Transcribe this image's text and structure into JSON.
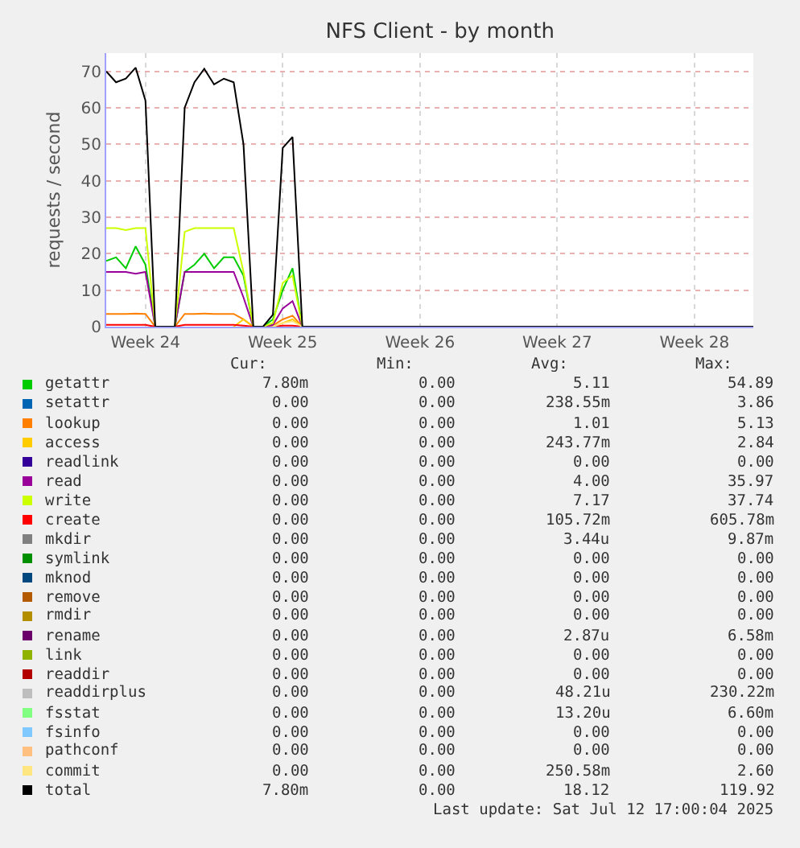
{
  "chart_data": {
    "type": "line",
    "title": "NFS Client - by month",
    "ylabel": "requests / second",
    "categories": [
      null,
      null,
      null,
      null,
      "Week 24",
      null,
      null,
      null,
      null,
      null,
      null,
      null,
      null,
      null,
      null,
      null,
      null,
      null,
      "Week 25",
      null,
      null,
      null,
      null,
      null,
      null,
      null,
      null,
      null,
      null,
      null,
      null,
      null,
      "Week 26",
      null,
      null,
      null,
      null,
      null,
      null,
      null,
      null,
      null,
      null,
      null,
      null,
      null,
      "Week 27",
      null,
      null,
      null,
      null,
      null,
      null,
      null,
      null,
      null,
      null,
      null,
      null,
      null,
      "Week 28",
      null,
      null,
      null,
      null,
      null,
      null
    ],
    "ylim": [
      0,
      75
    ],
    "yticks": [
      0,
      10,
      20,
      30,
      40,
      50,
      60,
      70
    ],
    "grid": true,
    "legend": "bottom",
    "marker": "none",
    "line_style": "solid",
    "series": [
      {
        "name": "getattr",
        "color": "#00cc00",
        "values": [
          18,
          19,
          16,
          22,
          17,
          0,
          null,
          0,
          15,
          17,
          20,
          16,
          19,
          19,
          14,
          0,
          0,
          2,
          10,
          16,
          0,
          null,
          null,
          null,
          null,
          null,
          null,
          null,
          null,
          null,
          null,
          null,
          null,
          null,
          null,
          null,
          null,
          null,
          null,
          null,
          null,
          null,
          null,
          null,
          null,
          null,
          null,
          null,
          null,
          null,
          null,
          null,
          null,
          null,
          null,
          null,
          null,
          null,
          null,
          null,
          null,
          null,
          null,
          null,
          null,
          null,
          null
        ]
      },
      {
        "name": "setattr",
        "color": "#0066b3",
        "values": [
          null,
          null,
          null,
          null,
          null,
          null,
          null,
          null,
          null,
          null,
          null,
          null,
          null,
          null,
          null,
          null,
          null,
          null,
          null,
          null,
          null,
          null,
          null,
          null,
          null,
          null,
          null,
          null,
          null,
          null,
          null,
          null,
          null,
          null,
          null,
          null,
          null,
          null,
          null,
          null,
          null,
          null,
          null,
          null,
          null,
          null,
          null,
          null,
          null,
          null,
          null,
          null,
          null,
          null,
          null,
          null,
          null,
          null,
          null,
          null,
          null,
          null,
          null,
          null,
          null,
          null,
          null
        ]
      },
      {
        "name": "lookup",
        "color": "#ff8000",
        "values": [
          3.5,
          3.5,
          3.5,
          3.6,
          3.5,
          0,
          null,
          0,
          3.5,
          3.5,
          3.6,
          3.5,
          3.5,
          3.5,
          2,
          0,
          0,
          0.3,
          2,
          3,
          0,
          null,
          null,
          null,
          null,
          null,
          null,
          null,
          null,
          null,
          null,
          null,
          null,
          null,
          null,
          null,
          null,
          null,
          null,
          null,
          null,
          null,
          null,
          null,
          null,
          null,
          null,
          null,
          null,
          null,
          null,
          null,
          null,
          null,
          null,
          null,
          null,
          null,
          null,
          null,
          null,
          null,
          null,
          null,
          null,
          null,
          null
        ]
      },
      {
        "name": "access",
        "color": "#ffcc00",
        "values": [
          null,
          null,
          null,
          null,
          null,
          null,
          null,
          null,
          null,
          null,
          null,
          null,
          null,
          0,
          2,
          0,
          null,
          0,
          1,
          2,
          0,
          null,
          null,
          null,
          null,
          null,
          null,
          null,
          null,
          null,
          null,
          null,
          null,
          null,
          null,
          null,
          null,
          null,
          null,
          null,
          null,
          null,
          null,
          null,
          null,
          null,
          null,
          null,
          null,
          null,
          null,
          null,
          null,
          null,
          null,
          null,
          null,
          null,
          null,
          null,
          null,
          null,
          null,
          null,
          null,
          null,
          null
        ]
      },
      {
        "name": "readlink",
        "color": "#330099",
        "values": [
          null,
          null,
          null,
          null,
          null,
          null,
          null,
          null,
          null,
          null,
          null,
          null,
          null,
          null,
          null,
          null,
          null,
          null,
          null,
          null,
          null,
          null,
          null,
          null,
          null,
          null,
          null,
          null,
          null,
          null,
          null,
          null,
          null,
          null,
          null,
          null,
          null,
          null,
          null,
          null,
          null,
          null,
          null,
          null,
          null,
          null,
          null,
          null,
          null,
          null,
          null,
          null,
          null,
          null,
          null,
          null,
          null,
          null,
          null,
          null,
          null,
          null,
          null,
          null,
          null,
          null,
          null
        ]
      },
      {
        "name": "read",
        "color": "#990099",
        "values": [
          15,
          15,
          15,
          14.5,
          15,
          0,
          null,
          0,
          15,
          15,
          15,
          15,
          15,
          15,
          8,
          0,
          0,
          0.5,
          5,
          7,
          0,
          null,
          null,
          null,
          null,
          null,
          null,
          null,
          null,
          null,
          null,
          null,
          null,
          null,
          null,
          null,
          null,
          null,
          null,
          null,
          null,
          null,
          null,
          null,
          null,
          null,
          null,
          null,
          null,
          null,
          null,
          null,
          null,
          null,
          null,
          null,
          null,
          null,
          null,
          null,
          null,
          null,
          null,
          null,
          null,
          null,
          null
        ]
      },
      {
        "name": "write",
        "color": "#ccff00",
        "values": [
          27,
          27,
          26.5,
          27,
          27,
          0,
          null,
          0,
          26,
          27,
          27,
          27,
          27,
          27,
          15,
          0,
          0,
          1,
          12,
          14,
          0,
          null,
          null,
          null,
          null,
          null,
          null,
          null,
          null,
          null,
          null,
          null,
          null,
          null,
          null,
          null,
          null,
          null,
          null,
          null,
          null,
          null,
          null,
          null,
          null,
          null,
          null,
          null,
          null,
          null,
          null,
          null,
          null,
          null,
          null,
          null,
          null,
          null,
          null,
          null,
          null,
          null,
          null,
          null,
          null,
          null,
          null
        ]
      },
      {
        "name": "create",
        "color": "#ff0000",
        "values": [
          0.5,
          0.5,
          0.5,
          0.5,
          0.5,
          0,
          null,
          0,
          0.5,
          0.5,
          0.5,
          0.5,
          0.5,
          0.5,
          0.3,
          0,
          null,
          0,
          0.3,
          0.3,
          0,
          null,
          null,
          null,
          null,
          null,
          null,
          null,
          null,
          null,
          null,
          null,
          null,
          null,
          null,
          null,
          null,
          null,
          null,
          null,
          null,
          null,
          null,
          null,
          null,
          null,
          null,
          null,
          null,
          null,
          null,
          null,
          null,
          null,
          null,
          null,
          null,
          null,
          null,
          null,
          null,
          null,
          null,
          null,
          null,
          null,
          null
        ]
      },
      {
        "name": "mkdir",
        "color": "#808080",
        "values": [
          null,
          null,
          null,
          null,
          null,
          null,
          null,
          null,
          null,
          null,
          null,
          null,
          null,
          null,
          null,
          null,
          null,
          null,
          null,
          null,
          null,
          null,
          null,
          null,
          null,
          null,
          null,
          null,
          null,
          null,
          null,
          null,
          null,
          null,
          null,
          null,
          null,
          null,
          null,
          null,
          null,
          null,
          null,
          null,
          null,
          null,
          null,
          null,
          null,
          null,
          null,
          null,
          null,
          null,
          null,
          null,
          null,
          null,
          null,
          null,
          null,
          null,
          null,
          null,
          null,
          null,
          null
        ]
      },
      {
        "name": "symlink",
        "color": "#008f00",
        "values": [
          null,
          null,
          null,
          null,
          null,
          null,
          null,
          null,
          null,
          null,
          null,
          null,
          null,
          null,
          null,
          null,
          null,
          null,
          null,
          null,
          null,
          null,
          null,
          null,
          null,
          null,
          null,
          null,
          null,
          null,
          null,
          null,
          null,
          null,
          null,
          null,
          null,
          null,
          null,
          null,
          null,
          null,
          null,
          null,
          null,
          null,
          null,
          null,
          null,
          null,
          null,
          null,
          null,
          null,
          null,
          null,
          null,
          null,
          null,
          null,
          null,
          null,
          null,
          null,
          null,
          null,
          null
        ]
      },
      {
        "name": "mknod",
        "color": "#00487d",
        "values": [
          null,
          null,
          null,
          null,
          null,
          null,
          null,
          null,
          null,
          null,
          null,
          null,
          null,
          null,
          null,
          null,
          null,
          null,
          null,
          null,
          null,
          null,
          null,
          null,
          null,
          null,
          null,
          null,
          null,
          null,
          null,
          null,
          null,
          null,
          null,
          null,
          null,
          null,
          null,
          null,
          null,
          null,
          null,
          null,
          null,
          null,
          null,
          null,
          null,
          null,
          null,
          null,
          null,
          null,
          null,
          null,
          null,
          null,
          null,
          null,
          null,
          null,
          null,
          null,
          null,
          null,
          null
        ]
      },
      {
        "name": "remove",
        "color": "#b35a00",
        "values": [
          null,
          null,
          null,
          null,
          null,
          null,
          null,
          null,
          null,
          null,
          null,
          null,
          null,
          null,
          null,
          null,
          null,
          null,
          null,
          null,
          null,
          null,
          null,
          null,
          null,
          null,
          null,
          null,
          null,
          null,
          null,
          null,
          null,
          null,
          null,
          null,
          null,
          null,
          null,
          null,
          null,
          null,
          null,
          null,
          null,
          null,
          null,
          null,
          null,
          null,
          null,
          null,
          null,
          null,
          null,
          null,
          null,
          null,
          null,
          null,
          null,
          null,
          null,
          null,
          null,
          null,
          null
        ]
      },
      {
        "name": "rmdir",
        "color": "#b38f00",
        "values": [
          null,
          null,
          null,
          null,
          null,
          null,
          null,
          null,
          null,
          null,
          null,
          null,
          null,
          null,
          null,
          null,
          null,
          null,
          null,
          null,
          null,
          null,
          null,
          null,
          null,
          null,
          null,
          null,
          null,
          null,
          null,
          null,
          null,
          null,
          null,
          null,
          null,
          null,
          null,
          null,
          null,
          null,
          null,
          null,
          null,
          null,
          null,
          null,
          null,
          null,
          null,
          null,
          null,
          null,
          null,
          null,
          null,
          null,
          null,
          null,
          null,
          null,
          null,
          null,
          null,
          null,
          null
        ]
      },
      {
        "name": "rename",
        "color": "#6b006b",
        "values": [
          null,
          null,
          null,
          null,
          null,
          null,
          null,
          null,
          null,
          null,
          null,
          null,
          null,
          null,
          null,
          null,
          null,
          null,
          null,
          null,
          null,
          null,
          null,
          null,
          null,
          null,
          null,
          null,
          null,
          null,
          null,
          null,
          null,
          null,
          null,
          null,
          null,
          null,
          null,
          null,
          null,
          null,
          null,
          null,
          null,
          null,
          null,
          null,
          null,
          null,
          null,
          null,
          null,
          null,
          null,
          null,
          null,
          null,
          null,
          null,
          null,
          null,
          null,
          null,
          null,
          null,
          null
        ]
      },
      {
        "name": "link",
        "color": "#8fb300",
        "values": [
          null,
          null,
          null,
          null,
          null,
          null,
          null,
          null,
          null,
          null,
          null,
          null,
          null,
          null,
          null,
          null,
          null,
          null,
          null,
          null,
          null,
          null,
          null,
          null,
          null,
          null,
          null,
          null,
          null,
          null,
          null,
          null,
          null,
          null,
          null,
          null,
          null,
          null,
          null,
          null,
          null,
          null,
          null,
          null,
          null,
          null,
          null,
          null,
          null,
          null,
          null,
          null,
          null,
          null,
          null,
          null,
          null,
          null,
          null,
          null,
          null,
          null,
          null,
          null,
          null,
          null,
          null
        ]
      },
      {
        "name": "readdir",
        "color": "#b30000",
        "values": [
          null,
          null,
          null,
          null,
          null,
          null,
          null,
          null,
          null,
          null,
          null,
          null,
          null,
          null,
          null,
          null,
          null,
          null,
          null,
          null,
          null,
          null,
          null,
          null,
          null,
          null,
          null,
          null,
          null,
          null,
          null,
          null,
          null,
          null,
          null,
          null,
          null,
          null,
          null,
          null,
          null,
          null,
          null,
          null,
          null,
          null,
          null,
          null,
          null,
          null,
          null,
          null,
          null,
          null,
          null,
          null,
          null,
          null,
          null,
          null,
          null,
          null,
          null,
          null,
          null,
          null,
          null
        ]
      },
      {
        "name": "readdirplus",
        "color": "#bebebe",
        "values": [
          null,
          null,
          null,
          null,
          null,
          null,
          null,
          null,
          null,
          null,
          null,
          null,
          null,
          null,
          null,
          null,
          null,
          null,
          null,
          null,
          null,
          null,
          null,
          null,
          null,
          null,
          null,
          null,
          null,
          null,
          null,
          null,
          null,
          null,
          null,
          null,
          null,
          null,
          null,
          null,
          null,
          null,
          null,
          null,
          null,
          null,
          null,
          null,
          null,
          null,
          null,
          null,
          null,
          null,
          null,
          null,
          null,
          null,
          null,
          null,
          null,
          null,
          null,
          null,
          null,
          null,
          null
        ]
      },
      {
        "name": "fsstat",
        "color": "#80ff80",
        "values": [
          null,
          null,
          null,
          null,
          null,
          null,
          null,
          null,
          null,
          null,
          null,
          null,
          null,
          null,
          null,
          null,
          null,
          null,
          null,
          null,
          null,
          null,
          null,
          null,
          null,
          null,
          null,
          null,
          null,
          null,
          null,
          null,
          null,
          null,
          null,
          null,
          null,
          null,
          null,
          null,
          null,
          null,
          null,
          null,
          null,
          null,
          null,
          null,
          null,
          null,
          null,
          null,
          null,
          null,
          null,
          null,
          null,
          null,
          null,
          null,
          null,
          null,
          null,
          null,
          null,
          null,
          null
        ]
      },
      {
        "name": "fsinfo",
        "color": "#80c9ff",
        "values": [
          null,
          null,
          null,
          null,
          null,
          null,
          null,
          null,
          null,
          null,
          null,
          null,
          null,
          null,
          null,
          null,
          null,
          null,
          null,
          null,
          null,
          null,
          null,
          null,
          null,
          null,
          null,
          null,
          null,
          null,
          null,
          null,
          null,
          null,
          null,
          null,
          null,
          null,
          null,
          null,
          null,
          null,
          null,
          null,
          null,
          null,
          null,
          null,
          null,
          null,
          null,
          null,
          null,
          null,
          null,
          null,
          null,
          null,
          null,
          null,
          null,
          null,
          null,
          null,
          null,
          null,
          null
        ]
      },
      {
        "name": "pathconf",
        "color": "#ffc080",
        "values": [
          null,
          null,
          null,
          null,
          null,
          null,
          null,
          null,
          null,
          null,
          null,
          null,
          null,
          null,
          null,
          null,
          null,
          null,
          null,
          null,
          null,
          null,
          null,
          null,
          null,
          null,
          null,
          null,
          null,
          null,
          null,
          null,
          null,
          null,
          null,
          null,
          null,
          null,
          null,
          null,
          null,
          null,
          null,
          null,
          null,
          null,
          null,
          null,
          null,
          null,
          null,
          null,
          null,
          null,
          null,
          null,
          null,
          null,
          null,
          null,
          null,
          null,
          null,
          null,
          null,
          null,
          null
        ]
      },
      {
        "name": "commit",
        "color": "#ffe680",
        "values": [
          null,
          null,
          null,
          null,
          null,
          null,
          null,
          null,
          null,
          null,
          null,
          null,
          null,
          null,
          null,
          null,
          null,
          0,
          1,
          1.5,
          0,
          null,
          null,
          null,
          null,
          null,
          null,
          null,
          null,
          null,
          null,
          null,
          null,
          null,
          null,
          null,
          null,
          null,
          null,
          null,
          null,
          null,
          null,
          null,
          null,
          null,
          null,
          null,
          null,
          null,
          null,
          null,
          null,
          null,
          null,
          null,
          null,
          null,
          null,
          null,
          null,
          null,
          null,
          null,
          null,
          null,
          null
        ]
      },
      {
        "name": "total",
        "color": "#000000",
        "values": [
          70,
          67,
          68,
          71,
          62,
          0,
          0,
          0,
          60,
          67,
          70.7,
          66.4,
          68,
          67,
          50,
          0,
          0,
          3.3,
          49,
          52,
          0,
          0,
          0,
          0,
          0,
          0,
          0,
          0,
          0,
          0,
          0,
          0,
          0,
          0,
          0,
          0,
          0,
          0,
          0,
          0,
          0,
          0,
          0,
          0,
          0,
          0,
          0,
          0,
          0,
          0,
          0,
          0,
          0,
          0,
          0,
          0,
          0,
          0,
          0,
          0,
          0,
          0,
          0,
          0,
          0,
          0,
          0
        ]
      }
    ],
    "annotations": [
      "Cur:",
      "Min:",
      "Avg:",
      "Max:",
      "7.80m",
      "0.00",
      "5.11",
      "54.89",
      "0.00",
      "0.00",
      "238.55m",
      "3.86",
      "0.00",
      "0.00",
      "1.01",
      "5.13",
      "0.00",
      "0.00",
      "243.77m",
      "2.84",
      "0.00",
      "0.00",
      "0.00",
      "0.00",
      "0.00",
      "0.00",
      "4.00",
      "35.97",
      "0.00",
      "0.00",
      "7.17",
      "37.74",
      "0.00",
      "0.00",
      "105.72m",
      "605.78m",
      "0.00",
      "0.00",
      "3.44u",
      "9.87m",
      "0.00",
      "0.00",
      "0.00",
      "0.00",
      "0.00",
      "0.00",
      "0.00",
      "0.00",
      "0.00",
      "0.00",
      "0.00",
      "0.00",
      "0.00",
      "0.00",
      "0.00",
      "0.00",
      "0.00",
      "0.00",
      "2.87u",
      "6.58m",
      "0.00",
      "0.00",
      "0.00",
      "0.00",
      "0.00",
      "0.00",
      "0.00",
      "0.00",
      "0.00",
      "0.00",
      "48.21u",
      "230.22m",
      "0.00",
      "0.00",
      "13.20u",
      "6.60m",
      "0.00",
      "0.00",
      "0.00",
      "0.00",
      "0.00",
      "0.00",
      "0.00",
      "0.00",
      "0.00",
      "0.00",
      "250.58m",
      "2.60",
      "7.80m",
      "0.00",
      "18.12",
      "119.92",
      "Last update: Sat Jul 12 17:00:04 2025"
    ]
  }
}
